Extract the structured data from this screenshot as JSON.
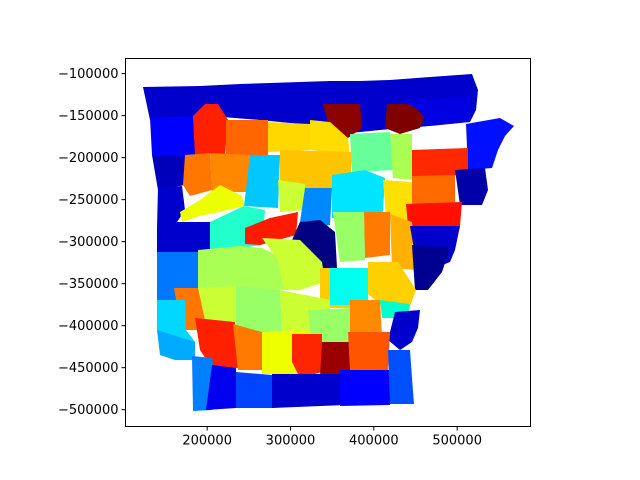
{
  "chart_data": {
    "type": "choropleth-map",
    "title": "",
    "xlabel": "",
    "ylabel": "",
    "xlim": [
      102000,
      588000
    ],
    "ylim": [
      -520000,
      -82000
    ],
    "x_ticks": [
      {
        "value": 200000,
        "label": "200000"
      },
      {
        "value": 300000,
        "label": "300000"
      },
      {
        "value": 400000,
        "label": "400000"
      },
      {
        "value": 500000,
        "label": "500000"
      }
    ],
    "y_ticks": [
      {
        "value": -100000,
        "label": "−100000"
      },
      {
        "value": -150000,
        "label": "−150000"
      },
      {
        "value": -200000,
        "label": "−200000"
      },
      {
        "value": -250000,
        "label": "−250000"
      },
      {
        "value": -300000,
        "label": "−300000"
      },
      {
        "value": -350000,
        "label": "−350000"
      },
      {
        "value": -400000,
        "label": "−400000"
      },
      {
        "value": -450000,
        "label": "−450000"
      },
      {
        "value": -500000,
        "label": "−500000"
      }
    ],
    "colormap": "jet",
    "grid": false,
    "legend": "none"
  }
}
